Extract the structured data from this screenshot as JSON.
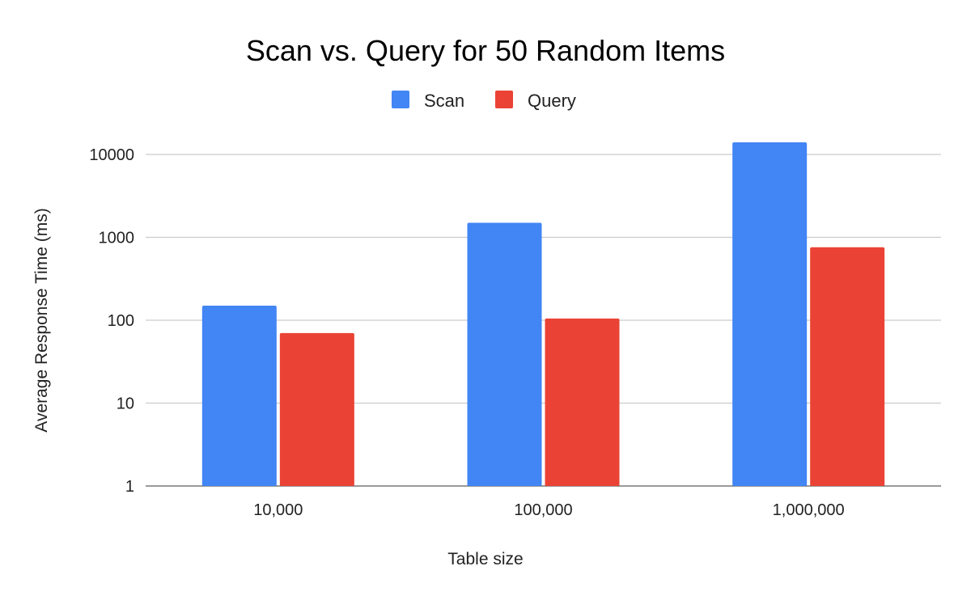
{
  "chart_data": {
    "type": "bar",
    "title": "Scan vs. Query for 50 Random Items",
    "xlabel": "Table size",
    "ylabel": "Average Response Time (ms)",
    "y_scale": "log",
    "ylim": [
      1,
      10000
    ],
    "yticks": [
      "1",
      "10",
      "100",
      "1000",
      "10000"
    ],
    "categories": [
      "10,000",
      "100,000",
      "1,000,000"
    ],
    "series": [
      {
        "name": "Scan",
        "color": "#4285f4",
        "values": [
          150,
          1500,
          14000
        ]
      },
      {
        "name": "Query",
        "color": "#ea4335",
        "values": [
          70,
          105,
          760
        ]
      }
    ],
    "legend": "top-center",
    "grid": true
  }
}
